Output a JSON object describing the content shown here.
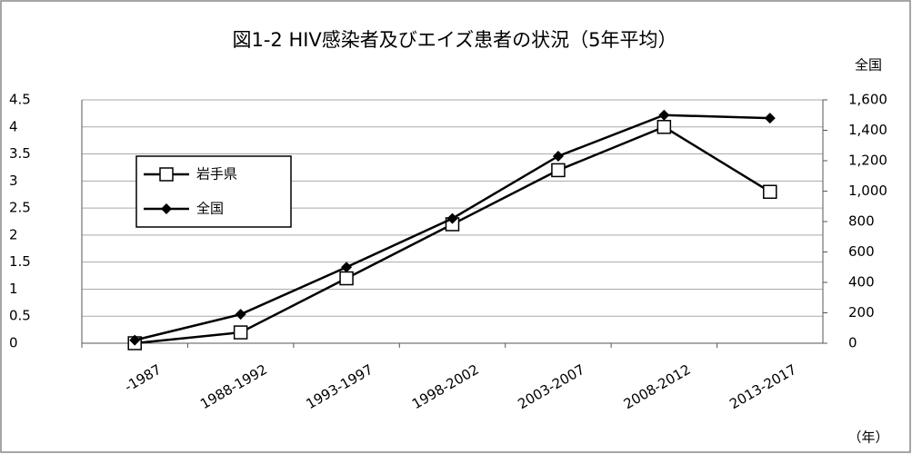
{
  "chart_data": {
    "type": "line",
    "title": "図1-2 HIV感染者及びエイズ患者の状況（5年平均）",
    "y2_label": "全国",
    "x_label": "（年）",
    "categories": [
      "-1987",
      "1988-1992",
      "1993-1997",
      "1998-2002",
      "2003-2007",
      "2008-2012",
      "2013-2017"
    ],
    "series": [
      {
        "name": "岩手県",
        "color": "#000000",
        "marker": "square",
        "values": [
          0,
          0.2,
          1.2,
          2.2,
          3.2,
          4.0,
          2.8
        ]
      },
      {
        "name": "全国",
        "color": "#000000",
        "marker": "diamond",
        "axis": "y2",
        "values": [
          20,
          190,
          500,
          820,
          1230,
          1500,
          1480
        ]
      }
    ],
    "ylim": [
      0,
      4.5
    ],
    "yticks": [
      0,
      0.5,
      1,
      1.5,
      2,
      2.5,
      3,
      3.5,
      4,
      4.5
    ],
    "y2lim": [
      0,
      1600
    ],
    "y2ticks": [
      0,
      200,
      400,
      600,
      800,
      {
        "value": 1000,
        "label": "1,000"
      },
      {
        "value": 1200,
        "label": "1,200"
      },
      {
        "value": 1400,
        "label": "1,400"
      },
      {
        "value": 1600,
        "label": "1,600"
      }
    ],
    "grid": true,
    "legend": "left"
  }
}
